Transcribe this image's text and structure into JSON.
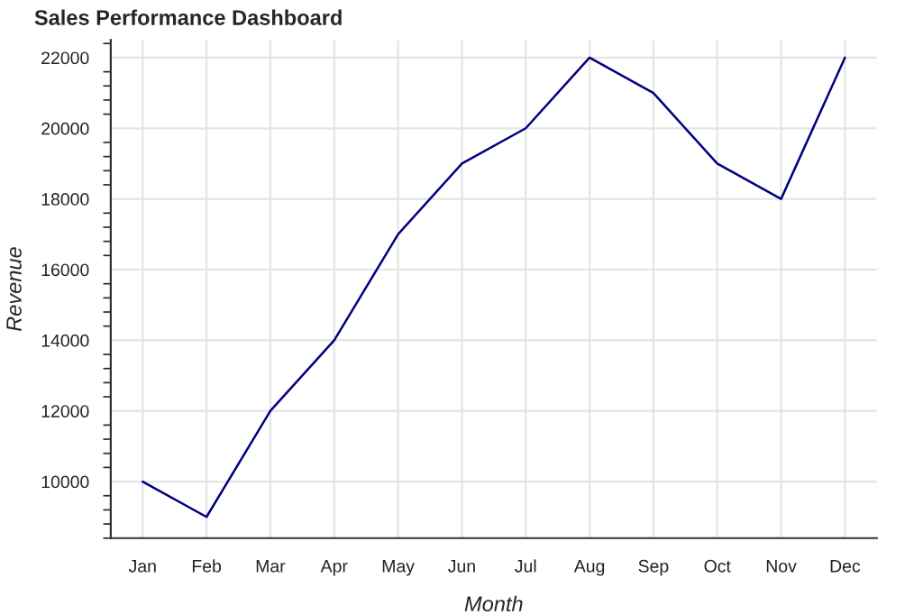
{
  "chart_data": {
    "type": "line",
    "title": "Sales Performance Dashboard",
    "xlabel": "Month",
    "ylabel": "Revenue",
    "categories": [
      "Jan",
      "Feb",
      "Mar",
      "Apr",
      "May",
      "Jun",
      "Jul",
      "Aug",
      "Sep",
      "Oct",
      "Nov",
      "Dec"
    ],
    "series": [
      {
        "color": "#000080",
        "values": [
          10000,
          9000,
          12000,
          14000,
          17000,
          19000,
          20000,
          22000,
          21000,
          19000,
          18000,
          22000
        ]
      }
    ],
    "ylim": [
      8400,
      22500
    ],
    "yticks": [
      10000,
      12000,
      14000,
      16000,
      18000,
      20000,
      22000
    ],
    "grid": true,
    "marker": "none",
    "line_style": "solid"
  }
}
